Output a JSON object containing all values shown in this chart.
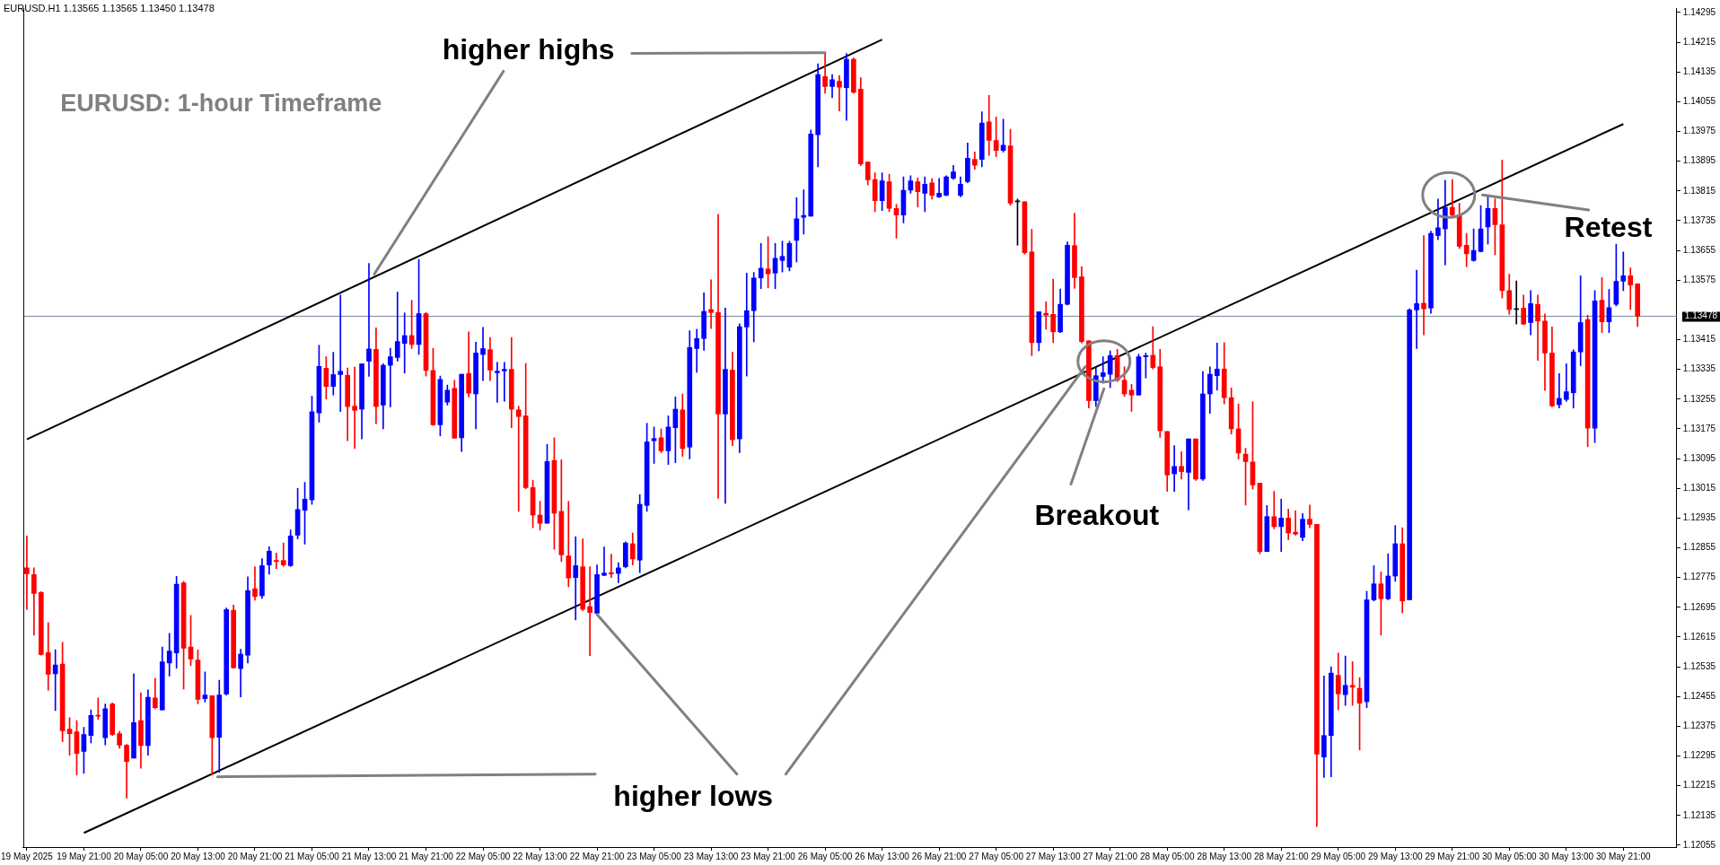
{
  "chart_data": {
    "type": "candlestick",
    "title": "EURUSD: 1-hour Timeframe",
    "categories": [
      "19 May 2025",
      null,
      null,
      null,
      null,
      null,
      null,
      null,
      "19 May 21:00",
      null,
      null,
      null,
      null,
      null,
      null,
      null,
      "20 May 05:00",
      null,
      null,
      null,
      null,
      null,
      null,
      null,
      "20 May 13:00",
      null,
      null,
      null,
      null,
      null,
      null,
      null,
      "20 May 21:00",
      null,
      null,
      null,
      null,
      null,
      null,
      null,
      "21 May 05:00",
      null,
      null,
      null,
      null,
      null,
      null,
      null,
      "21 May 13:00",
      null,
      null,
      null,
      null,
      null,
      null,
      null,
      "21 May 21:00",
      null,
      null,
      null,
      null,
      null,
      null,
      null,
      "22 May 05:00",
      null,
      null,
      null,
      null,
      null,
      null,
      null,
      "22 May 13:00",
      null,
      null,
      null,
      null,
      null,
      null,
      null,
      "22 May 21:00",
      null,
      null,
      null,
      null,
      null,
      null,
      null,
      "23 May 05:00",
      null,
      null,
      null,
      null,
      null,
      null,
      null,
      "23 May 13:00",
      null,
      null,
      null,
      null,
      null,
      null,
      null,
      "23 May 21:00",
      null,
      null,
      null,
      null,
      null,
      null,
      null,
      "26 May 05:00",
      null,
      null,
      null,
      null,
      null,
      null,
      null,
      "26 May 13:00",
      null,
      null,
      null,
      null,
      null,
      null,
      null,
      "26 May 21:00",
      null,
      null,
      null,
      null,
      null,
      null,
      null,
      "27 May 05:00",
      null,
      null,
      null,
      null,
      null,
      null,
      null,
      "27 May 13:00",
      null,
      null,
      null,
      null,
      null,
      null,
      null,
      "27 May 21:00",
      null,
      null,
      null,
      null,
      null,
      null,
      null,
      "28 May 05:00",
      null,
      null,
      null,
      null,
      null,
      null,
      null,
      "28 May 13:00",
      null,
      null,
      null,
      null,
      null,
      null,
      null,
      "28 May 21:00",
      null,
      null,
      null,
      null,
      null,
      null,
      null,
      "29 May 05:00",
      null,
      null,
      null,
      null,
      null,
      null,
      null,
      "29 May 13:00",
      null,
      null,
      null,
      null,
      null,
      null,
      null,
      "29 May 21:00",
      null,
      null,
      null,
      null,
      null,
      null,
      null,
      "30 May 05:00",
      null,
      null,
      null,
      null,
      null,
      null,
      null,
      "30 May 13:00",
      null,
      null,
      null,
      null,
      null,
      null,
      null,
      "30 May 21:00",
      null,
      null
    ],
    "ohlc": [
      [
        1.12801,
        1.12887,
        1.12689,
        1.12785
      ],
      [
        1.12783,
        1.12801,
        1.1262,
        1.12732
      ],
      [
        1.12735,
        1.12737,
        1.12566,
        1.12568
      ],
      [
        1.12573,
        1.12654,
        1.12472,
        1.12515
      ],
      [
        1.12516,
        1.12581,
        1.12417,
        1.1254
      ],
      [
        1.12542,
        1.12601,
        1.12333,
        1.12363
      ],
      [
        1.12367,
        1.12398,
        1.12297,
        1.12355
      ],
      [
        1.1236,
        1.1239,
        1.12244,
        1.12302
      ],
      [
        1.12307,
        1.12372,
        1.12248,
        1.12353
      ],
      [
        1.1235,
        1.12419,
        1.1233,
        1.12404
      ],
      [
        1.12404,
        1.12451,
        1.12393,
        1.12402
      ],
      [
        1.12344,
        1.12435,
        1.12325,
        1.12422
      ],
      [
        1.12435,
        1.12438,
        1.1235,
        1.12353
      ],
      [
        1.12355,
        1.12361,
        1.12316,
        1.12324
      ],
      [
        1.12324,
        1.12326,
        1.12182,
        1.1228
      ],
      [
        1.12289,
        1.12516,
        1.12289,
        1.12385
      ],
      [
        1.1239,
        1.12465,
        1.12262,
        1.12323
      ],
      [
        1.12323,
        1.12473,
        1.12297,
        1.12453
      ],
      [
        1.12451,
        1.12504,
        1.12422,
        1.12425
      ],
      [
        1.12419,
        1.12588,
        1.12419,
        1.12548
      ],
      [
        1.12545,
        1.12625,
        1.1251,
        1.12577
      ],
      [
        1.12572,
        1.12778,
        1.12531,
        1.12757
      ],
      [
        1.12761,
        1.12765,
        1.12475,
        1.12585
      ],
      [
        1.12588,
        1.12673,
        1.12538,
        1.12556
      ],
      [
        1.12553,
        1.1258,
        1.12435,
        1.12447
      ],
      [
        1.12449,
        1.12521,
        1.1244,
        1.12459
      ],
      [
        1.12457,
        1.12457,
        1.12244,
        1.12344
      ],
      [
        1.12345,
        1.12499,
        1.12251,
        1.12459
      ],
      [
        1.12462,
        1.12693,
        1.12459,
        1.12689
      ],
      [
        1.12687,
        1.12701,
        1.12531,
        1.12532
      ],
      [
        1.1253,
        1.12582,
        1.12454,
        1.12569
      ],
      [
        1.12566,
        1.12777,
        1.12545,
        1.1274
      ],
      [
        1.12745,
        1.12804,
        1.12714,
        1.12724
      ],
      [
        1.12726,
        1.12826,
        1.12719,
        1.12807
      ],
      [
        1.12809,
        1.12858,
        1.12784,
        1.12846
      ],
      [
        1.12821,
        1.12841,
        1.12799,
        1.12818
      ],
      [
        1.12821,
        1.12868,
        1.12805,
        1.12809
      ],
      [
        1.12807,
        1.12903,
        1.12805,
        1.12887
      ],
      [
        1.12889,
        1.13015,
        1.12879,
        1.12958
      ],
      [
        1.12956,
        1.13031,
        1.12865,
        1.12986
      ],
      [
        1.12984,
        1.13263,
        1.12972,
        1.13221
      ],
      [
        1.13218,
        1.134,
        1.13193,
        1.13343
      ],
      [
        1.13338,
        1.13369,
        1.13255,
        1.13289
      ],
      [
        1.13289,
        1.13381,
        1.13266,
        1.13321
      ],
      [
        1.13321,
        1.13535,
        1.13222,
        1.1333
      ],
      [
        1.13319,
        1.13339,
        1.13143,
        1.13235
      ],
      [
        1.13236,
        1.13341,
        1.13122,
        1.13225
      ],
      [
        1.13228,
        1.1335,
        1.13148,
        1.1335
      ],
      [
        1.13357,
        1.1362,
        1.13316,
        1.1339
      ],
      [
        1.13389,
        1.13447,
        1.13189,
        1.13235
      ],
      [
        1.13239,
        1.1335,
        1.13175,
        1.13346
      ],
      [
        1.13346,
        1.13392,
        1.13234,
        1.13369
      ],
      [
        1.13367,
        1.13543,
        1.13357,
        1.1341
      ],
      [
        1.13405,
        1.13487,
        1.13325,
        1.13426
      ],
      [
        1.13426,
        1.13521,
        1.13391,
        1.13402
      ],
      [
        1.13402,
        1.13631,
        1.13375,
        1.13485
      ],
      [
        1.13485,
        1.13488,
        1.13317,
        1.13332
      ],
      [
        1.13332,
        1.13392,
        1.13184,
        1.13186
      ],
      [
        1.13186,
        1.13317,
        1.13156,
        1.13308
      ],
      [
        1.13247,
        1.13293,
        1.13239,
        1.13279
      ],
      [
        1.13284,
        1.13306,
        1.1315,
        1.1315
      ],
      [
        1.13151,
        1.13322,
        1.13114,
        1.13322
      ],
      [
        1.13324,
        1.13436,
        1.13261,
        1.13271
      ],
      [
        1.13269,
        1.13408,
        1.13175,
        1.13379
      ],
      [
        1.13375,
        1.13448,
        1.13305,
        1.13391
      ],
      [
        1.13388,
        1.13421,
        1.13305,
        1.13333
      ],
      [
        1.13326,
        1.13354,
        1.13246,
        1.1333
      ],
      [
        1.13331,
        1.13354,
        1.13249,
        1.13335
      ],
      [
        1.13335,
        1.13421,
        1.13178,
        1.13228
      ],
      [
        1.13226,
        1.13236,
        1.12953,
        1.13208
      ],
      [
        1.1321,
        1.13351,
        1.13014,
        1.13017
      ],
      [
        1.13017,
        1.13037,
        1.12909,
        1.12943
      ],
      [
        1.12943,
        1.1298,
        1.12903,
        1.12921
      ],
      [
        1.12921,
        1.13133,
        1.12921,
        1.13087
      ],
      [
        1.1309,
        1.13151,
        1.12851,
        1.12948
      ],
      [
        1.12953,
        1.13092,
        1.12818,
        1.12836
      ],
      [
        1.12833,
        1.1298,
        1.1275,
        1.12774
      ],
      [
        1.12775,
        1.12885,
        1.12661,
        1.12807
      ],
      [
        1.12804,
        1.12879,
        1.12686,
        1.1269
      ],
      [
        1.12697,
        1.12804,
        1.12565,
        1.12681
      ],
      [
        1.12679,
        1.12809,
        1.12676,
        1.12783
      ],
      [
        1.12781,
        1.12857,
        1.1278,
        1.12787
      ],
      [
        1.12788,
        1.12838,
        1.12775,
        1.12785
      ],
      [
        1.12786,
        1.12815,
        1.12761,
        1.12801
      ],
      [
        1.12804,
        1.12871,
        1.12801,
        1.12868
      ],
      [
        1.12866,
        1.12895,
        1.12809,
        1.12825
      ],
      [
        1.12822,
        1.12998,
        1.12788,
        1.12972
      ],
      [
        1.12969,
        1.1319,
        1.12953,
        1.1314
      ],
      [
        1.13143,
        1.1318,
        1.13082,
        1.13149
      ],
      [
        1.13151,
        1.13175,
        1.13111,
        1.13116
      ],
      [
        1.13116,
        1.1321,
        1.13079,
        1.1318
      ],
      [
        1.13178,
        1.13261,
        1.13084,
        1.13228
      ],
      [
        1.13226,
        1.13269,
        1.13101,
        1.13122
      ],
      [
        1.13126,
        1.13439,
        1.13094,
        1.13394
      ],
      [
        1.13391,
        1.13443,
        1.13327,
        1.13418
      ],
      [
        1.13418,
        1.13541,
        1.13386,
        1.13491
      ],
      [
        1.13496,
        1.13576,
        1.13445,
        1.13488
      ],
      [
        1.13488,
        1.13752,
        1.12988,
        1.13215
      ],
      [
        1.13215,
        1.135,
        1.12975,
        1.13335
      ],
      [
        1.13333,
        1.13381,
        1.1313,
        1.13146
      ],
      [
        1.13148,
        1.13458,
        1.13111,
        1.1345
      ],
      [
        1.13449,
        1.13594,
        1.13317,
        1.13493
      ],
      [
        1.13493,
        1.13596,
        1.13409,
        1.13581
      ],
      [
        1.13581,
        1.13674,
        1.13552,
        1.13607
      ],
      [
        1.13605,
        1.13692,
        1.13554,
        1.13592
      ],
      [
        1.13594,
        1.13674,
        1.13552,
        1.13634
      ],
      [
        1.13628,
        1.1368,
        1.13597,
        1.13639
      ],
      [
        1.1361,
        1.1368,
        1.136,
        1.13674
      ],
      [
        1.13682,
        1.13797,
        1.13624,
        1.1374
      ],
      [
        1.13744,
        1.13818,
        1.13699,
        1.13749
      ],
      [
        1.13747,
        1.13979,
        1.13747,
        1.13968
      ],
      [
        1.13966,
        1.14157,
        1.1388,
        1.14128
      ],
      [
        1.14123,
        1.14187,
        1.14078,
        1.14096
      ],
      [
        1.14096,
        1.14128,
        1.14066,
        1.14114
      ],
      [
        1.1411,
        1.14126,
        1.1403,
        1.14094
      ],
      [
        1.14093,
        1.14185,
        1.14005,
        1.14169
      ],
      [
        1.14169,
        1.14173,
        1.14078,
        1.1408
      ],
      [
        1.14089,
        1.1412,
        1.13883,
        1.13888
      ],
      [
        1.13893,
        1.13893,
        1.13831,
        1.13845
      ],
      [
        1.13846,
        1.13864,
        1.13759,
        1.13789
      ],
      [
        1.13789,
        1.13864,
        1.13762,
        1.13842
      ],
      [
        1.1384,
        1.1386,
        1.13759,
        1.13768
      ],
      [
        1.13768,
        1.13779,
        1.13688,
        1.1375
      ],
      [
        1.1375,
        1.13853,
        1.13729,
        1.13817
      ],
      [
        1.13817,
        1.13856,
        1.13809,
        1.13842
      ],
      [
        1.1384,
        1.1385,
        1.13772,
        1.13813
      ],
      [
        1.13809,
        1.13853,
        1.13759,
        1.13833
      ],
      [
        1.13837,
        1.13849,
        1.13793,
        1.13803
      ],
      [
        1.13799,
        1.13849,
        1.13797,
        1.13809
      ],
      [
        1.13803,
        1.13856,
        1.13802,
        1.13853
      ],
      [
        1.13849,
        1.13884,
        1.13846,
        1.13866
      ],
      [
        1.13803,
        1.13853,
        1.13799,
        1.13833
      ],
      [
        1.1384,
        1.13944,
        1.13837,
        1.13903
      ],
      [
        1.139,
        1.1392,
        1.13873,
        1.13884
      ],
      [
        1.139,
        1.14028,
        1.1388,
        1.13998
      ],
      [
        1.14001,
        1.14072,
        1.13911,
        1.13951
      ],
      [
        1.13951,
        1.14014,
        1.13907,
        1.13924
      ],
      [
        1.13924,
        1.14008,
        1.1392,
        1.13938
      ],
      [
        1.13936,
        1.13981,
        1.13776,
        1.13782
      ],
      [
        1.13786,
        1.13793,
        1.13669,
        1.13786
      ],
      [
        1.13786,
        1.13786,
        1.13645,
        1.13649
      ],
      [
        1.13651,
        1.13712,
        1.13372,
        1.13407
      ],
      [
        1.13407,
        1.1349,
        1.13385,
        1.1349
      ],
      [
        1.13486,
        1.13517,
        1.13443,
        1.13481
      ],
      [
        1.13483,
        1.13578,
        1.13407,
        1.13436
      ],
      [
        1.13436,
        1.13551,
        1.13434,
        1.1351
      ],
      [
        1.1351,
        1.13678,
        1.13508,
        1.13669
      ],
      [
        1.13668,
        1.13755,
        1.13553,
        1.13582
      ],
      [
        1.13584,
        1.13611,
        1.13406,
        1.1341
      ],
      [
        1.13412,
        1.13412,
        1.13231,
        1.13251
      ],
      [
        1.13251,
        1.13342,
        1.13235,
        1.13318
      ],
      [
        1.13316,
        1.13369,
        1.13298,
        1.13326
      ],
      [
        1.13322,
        1.13385,
        1.13286,
        1.13372
      ],
      [
        1.13372,
        1.13389,
        1.13302,
        1.13306
      ],
      [
        1.13306,
        1.13342,
        1.13262,
        1.13269
      ],
      [
        1.13279,
        1.13295,
        1.13222,
        1.13266
      ],
      [
        1.13266,
        1.13376,
        1.13266,
        1.13369
      ],
      [
        1.13369,
        1.13379,
        1.13312,
        1.13372
      ],
      [
        1.13373,
        1.1345,
        1.13336,
        1.1334
      ],
      [
        1.13342,
        1.13389,
        1.13152,
        1.1317
      ],
      [
        1.13168,
        1.13168,
        1.13007,
        1.13051
      ],
      [
        1.13054,
        1.1313,
        1.13007,
        1.13074
      ],
      [
        1.13074,
        1.13114,
        1.1304,
        1.1306
      ],
      [
        1.13058,
        1.13148,
        1.12957,
        1.13148
      ],
      [
        1.13148,
        1.13148,
        1.13036,
        1.1304
      ],
      [
        1.1304,
        1.13329,
        1.13036,
        1.13269
      ],
      [
        1.13269,
        1.13342,
        1.13217,
        1.13322
      ],
      [
        1.13318,
        1.13406,
        1.13279,
        1.13336
      ],
      [
        1.13336,
        1.13407,
        1.13242,
        1.13259
      ],
      [
        1.13259,
        1.13285,
        1.13161,
        1.13175
      ],
      [
        1.13175,
        1.13242,
        1.13094,
        1.1311
      ],
      [
        1.13107,
        1.13123,
        1.1297,
        1.13087
      ],
      [
        1.13086,
        1.13248,
        1.13013,
        1.13024
      ],
      [
        1.13029,
        1.13029,
        1.12839,
        1.12845
      ],
      [
        1.12845,
        1.12969,
        1.12845,
        1.12939
      ],
      [
        1.12939,
        1.13007,
        1.12906,
        1.12912
      ],
      [
        1.12912,
        1.12986,
        1.12845,
        1.12935
      ],
      [
        1.12935,
        1.12959,
        1.12877,
        1.12895
      ],
      [
        1.12897,
        1.12955,
        1.12889,
        1.12892
      ],
      [
        1.12883,
        1.12947,
        1.12874,
        1.12932
      ],
      [
        1.12932,
        1.1297,
        1.12909,
        1.12918
      ],
      [
        1.12918,
        1.12918,
        1.12105,
        1.123
      ],
      [
        1.12292,
        1.1251,
        1.12237,
        1.1235
      ],
      [
        1.1235,
        1.12535,
        1.12239,
        1.12518
      ],
      [
        1.12512,
        1.12572,
        1.12419,
        1.12462
      ],
      [
        1.1246,
        1.12564,
        1.12431,
        1.12485
      ],
      [
        1.12485,
        1.12549,
        1.12431,
        1.1248
      ],
      [
        1.12477,
        1.12506,
        1.12311,
        1.12437
      ],
      [
        1.12441,
        1.12738,
        1.12425,
        1.12715
      ],
      [
        1.12715,
        1.12807,
        1.12712,
        1.12758
      ],
      [
        1.12758,
        1.1279,
        1.1262,
        1.12718
      ],
      [
        1.12718,
        1.12839,
        1.12715,
        1.12779
      ],
      [
        1.12779,
        1.12915,
        1.12765,
        1.12866
      ],
      [
        1.12866,
        1.12909,
        1.1268,
        1.12712
      ],
      [
        1.12715,
        1.13498,
        1.12715,
        1.13495
      ],
      [
        1.13495,
        1.13602,
        1.13391,
        1.13512
      ],
      [
        1.13513,
        1.13695,
        1.13428,
        1.13498
      ],
      [
        1.135,
        1.13707,
        1.13486,
        1.13701
      ],
      [
        1.13695,
        1.13793,
        1.13684,
        1.13716
      ],
      [
        1.13713,
        1.13844,
        1.13616,
        1.13771
      ],
      [
        1.13771,
        1.13846,
        1.13742,
        1.13751
      ],
      [
        1.1375,
        1.13782,
        1.1366,
        1.13666
      ],
      [
        1.13669,
        1.13701,
        1.13611,
        1.13646
      ],
      [
        1.13628,
        1.13713,
        1.13626,
        1.13655
      ],
      [
        1.13652,
        1.13776,
        1.13651,
        1.13713
      ],
      [
        1.13718,
        1.138,
        1.13672,
        1.13768
      ],
      [
        1.13768,
        1.13794,
        1.13643,
        1.13724
      ],
      [
        1.13724,
        1.13898,
        1.13527,
        1.13547
      ],
      [
        1.13547,
        1.13591,
        1.13483,
        1.13496
      ],
      [
        1.13496,
        1.13573,
        1.13457,
        1.13496
      ],
      [
        1.135,
        1.13535,
        1.13455,
        1.13457
      ],
      [
        1.13461,
        1.13547,
        1.13428,
        1.13512
      ],
      [
        1.1351,
        1.13535,
        1.13359,
        1.13465
      ],
      [
        1.13465,
        1.13484,
        1.13278,
        1.13379
      ],
      [
        1.13379,
        1.13449,
        1.13234,
        1.13237
      ],
      [
        1.1324,
        1.13324,
        1.13231,
        1.13257
      ],
      [
        1.13254,
        1.1335,
        1.13249,
        1.13275
      ],
      [
        1.13272,
        1.13388,
        1.13231,
        1.13382
      ],
      [
        1.13382,
        1.13587,
        1.13345,
        1.13461
      ],
      [
        1.13469,
        1.13481,
        1.13127,
        1.13177
      ],
      [
        1.13177,
        1.13547,
        1.13138,
        1.13519
      ],
      [
        1.13521,
        1.13582,
        1.13434,
        1.13463
      ],
      [
        1.13463,
        1.1355,
        1.13434,
        1.13501
      ],
      [
        1.1351,
        1.13672,
        1.13506,
        1.13572
      ],
      [
        1.13572,
        1.13651,
        1.13547,
        1.13587
      ],
      [
        1.13587,
        1.13608,
        1.13496,
        1.13562
      ],
      [
        1.13565,
        1.13565,
        1.1345,
        1.13478
      ]
    ],
    "colors": [
      "#ff0000",
      "#ff0000",
      "#ff0000",
      "#ff0000",
      "#0000ff",
      "#ff0000",
      "#ff0000",
      "#ff0000",
      "#0000ff",
      "#0000ff",
      "#ff0000",
      "#0000ff",
      "#ff0000",
      "#ff0000",
      "#ff0000",
      "#0000ff",
      "#ff0000",
      "#0000ff",
      "#ff0000",
      "#0000ff",
      "#0000ff",
      "#0000ff",
      "#ff0000",
      "#ff0000",
      "#ff0000",
      "#0000ff",
      "#ff0000",
      "#0000ff",
      "#0000ff",
      "#ff0000",
      "#0000ff",
      "#0000ff",
      "#ff0000",
      "#0000ff",
      "#0000ff",
      "#ff0000",
      "#ff0000",
      "#0000ff",
      "#0000ff",
      "#0000ff",
      "#0000ff",
      "#0000ff",
      "#ff0000",
      "#0000ff",
      "#0000ff",
      "#ff0000",
      "#ff0000",
      "#0000ff",
      "#0000ff",
      "#ff0000",
      "#0000ff",
      "#0000ff",
      "#0000ff",
      "#0000ff",
      "#ff0000",
      "#0000ff",
      "#ff0000",
      "#ff0000",
      "#0000ff",
      "#0000ff",
      "#ff0000",
      "#0000ff",
      "#ff0000",
      "#0000ff",
      "#0000ff",
      "#ff0000",
      "#0000ff",
      "#0000ff",
      "#ff0000",
      "#ff0000",
      "#ff0000",
      "#ff0000",
      "#ff0000",
      "#0000ff",
      "#ff0000",
      "#ff0000",
      "#ff0000",
      "#0000ff",
      "#ff0000",
      "#ff0000",
      "#0000ff",
      "#0000ff",
      "#ff0000",
      "#0000ff",
      "#0000ff",
      "#ff0000",
      "#0000ff",
      "#0000ff",
      "#0000ff",
      "#ff0000",
      "#0000ff",
      "#0000ff",
      "#ff0000",
      "#0000ff",
      "#0000ff",
      "#0000ff",
      "#ff0000",
      "#ff0000",
      "#0000ff",
      "#ff0000",
      "#0000ff",
      "#0000ff",
      "#0000ff",
      "#0000ff",
      "#ff0000",
      "#0000ff",
      "#0000ff",
      "#0000ff",
      "#0000ff",
      "#0000ff",
      "#0000ff",
      "#0000ff",
      "#ff0000",
      "#0000ff",
      "#ff0000",
      "#0000ff",
      "#ff0000",
      "#ff0000",
      "#ff0000",
      "#ff0000",
      "#0000ff",
      "#ff0000",
      "#ff0000",
      "#0000ff",
      "#0000ff",
      "#ff0000",
      "#0000ff",
      "#ff0000",
      "#0000ff",
      "#0000ff",
      "#0000ff",
      "#0000ff",
      "#0000ff",
      "#ff0000",
      "#0000ff",
      "#ff0000",
      "#ff0000",
      "#0000ff",
      "#ff0000",
      "#000000",
      "#ff0000",
      "#ff0000",
      "#0000ff",
      "#ff0000",
      "#ff0000",
      "#0000ff",
      "#0000ff",
      "#ff0000",
      "#ff0000",
      "#ff0000",
      "#0000ff",
      "#0000ff",
      "#0000ff",
      "#ff0000",
      "#ff0000",
      "#ff0000",
      "#0000ff",
      "#0000ff",
      "#ff0000",
      "#ff0000",
      "#ff0000",
      "#0000ff",
      "#ff0000",
      "#0000ff",
      "#ff0000",
      "#0000ff",
      "#0000ff",
      "#0000ff",
      "#ff0000",
      "#ff0000",
      "#ff0000",
      "#ff0000",
      "#ff0000",
      "#ff0000",
      "#0000ff",
      "#ff0000",
      "#0000ff",
      "#ff0000",
      "#ff0000",
      "#0000ff",
      "#ff0000",
      "#ff0000",
      "#0000ff",
      "#0000ff",
      "#ff0000",
      "#0000ff",
      "#ff0000",
      "#ff0000",
      "#0000ff",
      "#0000ff",
      "#ff0000",
      "#0000ff",
      "#0000ff",
      "#ff0000",
      "#0000ff",
      "#0000ff",
      "#ff0000",
      "#0000ff",
      "#0000ff",
      "#0000ff",
      "#ff0000",
      "#ff0000",
      "#ff0000",
      "#0000ff",
      "#0000ff",
      "#0000ff",
      "#ff0000",
      "#ff0000",
      "#ff0000",
      "#000000",
      "#ff0000",
      "#0000ff",
      "#ff0000",
      "#ff0000",
      "#ff0000",
      "#0000ff",
      "#0000ff",
      "#0000ff",
      "#0000ff",
      "#ff0000",
      "#0000ff",
      "#ff0000",
      "#0000ff",
      "#0000ff",
      "#0000ff",
      "#ff0000",
      "#ff0000"
    ],
    "series": [
      {
        "type": "line",
        "x": [
          "19 May 2025",
          "26 May 13:00"
        ],
        "values": [
          1.13147,
          1.14222
        ],
        "color": "#000000"
      },
      {
        "type": "line",
        "x": [
          "19 May 21:00",
          "30 May 21:00"
        ],
        "values": [
          1.12088,
          1.13995
        ],
        "color": "#000000"
      }
    ],
    "ylim": [
      1.1205,
      1.14307
    ],
    "yticks": [
      1.12055,
      1.12135,
      1.12215,
      1.12295,
      1.12375,
      1.12455,
      1.12535,
      1.12615,
      1.12695,
      1.12775,
      1.12855,
      1.12935,
      1.13015,
      1.13095,
      1.13175,
      1.13255,
      1.13335,
      1.13415,
      1.13575,
      1.13655,
      1.13735,
      1.13815,
      1.13895,
      1.13975,
      1.14055,
      1.14135,
      1.14215,
      1.14295
    ],
    "grid": false,
    "legend": false,
    "ref_lines": [
      {
        "axis": "y",
        "value": 1.13478,
        "label": "1.13478",
        "color": "#778899"
      }
    ],
    "annotations": [
      "EURUSD.H1 1.13565 1.13565 1.13450 1.13478",
      {
        "text": "higher highs",
        "x": "26 May 05:00",
        "y": 1.14187
      },
      {
        "text": "higher lows",
        "x": "22 May 21:00",
        "y": 1.12676
      },
      "Breakout",
      "Retest"
    ]
  }
}
